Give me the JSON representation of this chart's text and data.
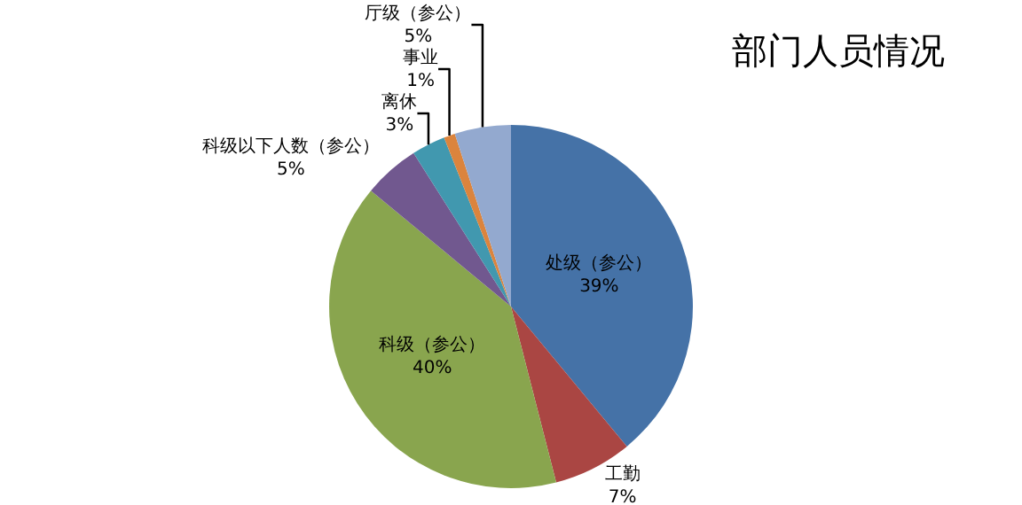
{
  "chart_data": {
    "type": "pie",
    "title": "部门人员情况",
    "categories": [
      "处级（参公）",
      "工勤",
      "科级（参公）",
      "科级以下人数（参公）",
      "离休",
      "事业",
      "厅级（参公）"
    ],
    "values": [
      39,
      7,
      40,
      5,
      3,
      1,
      5
    ],
    "value_labels": [
      "39%",
      "7%",
      "40%",
      "5%",
      "3%",
      "1%",
      "5%"
    ],
    "colors": [
      "#4572a7",
      "#aa4643",
      "#89a54e",
      "#71588f",
      "#4198af",
      "#db843d",
      "#93a9cf"
    ],
    "legend": false
  }
}
